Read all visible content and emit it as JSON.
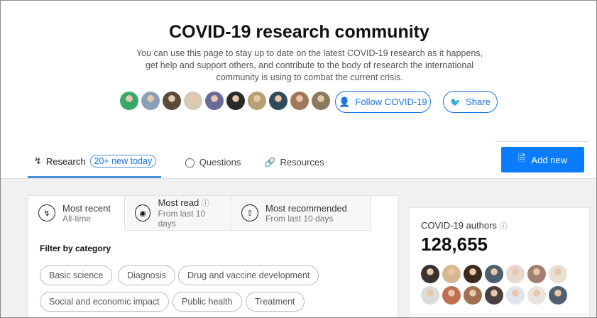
{
  "header": {
    "title": "COVID-19 research community",
    "description": "You can use this page to stay up to date on the latest COVID-19 research as it happens, get help and support others, and contribute to the body of research the international community is using to combat the current crisis.",
    "follow_label": "Follow COVID-19",
    "share_label": "Share",
    "member_avatar_colors": [
      "#3aa86b",
      "#8aa0b8",
      "#5a4a3a",
      "#d8c8b8",
      "#6a6a9a",
      "#2a2a2a",
      "#b8a070",
      "#2f4a5a",
      "#a07858",
      "#8a7a60"
    ]
  },
  "nav": {
    "tabs": [
      {
        "label": "Research",
        "badge": "20+ new today",
        "icon": "activity-icon"
      },
      {
        "label": "Questions",
        "icon": "question-bubble-icon"
      },
      {
        "label": "Resources",
        "icon": "link-icon"
      }
    ],
    "add_new_label": "Add new",
    "accent": "#0a7cff"
  },
  "feed": {
    "sort_tabs": [
      {
        "label": "Most recent",
        "sub": "All-time"
      },
      {
        "label": "Most read",
        "sub": "From last 10 days"
      },
      {
        "label": "Most recommended",
        "sub": "From last 10 days"
      }
    ],
    "filter_title": "Filter by category",
    "categories": [
      "Basic science",
      "Diagnosis",
      "Drug and vaccine development",
      "Social and economic impact",
      "Public health",
      "Treatment"
    ]
  },
  "authors": {
    "title": "COVID-19 authors",
    "count": "128,655",
    "avatar_colors": [
      "#3a3030",
      "#d8b890",
      "#3a2a20",
      "#4a6070",
      "#e8d8d0",
      "#a08070",
      "#e8e0d0",
      "#dcdcdc",
      "#c07050",
      "#a07050",
      "#4a4040",
      "#e0e4ea",
      "#e8e4e0",
      "#506070"
    ]
  }
}
